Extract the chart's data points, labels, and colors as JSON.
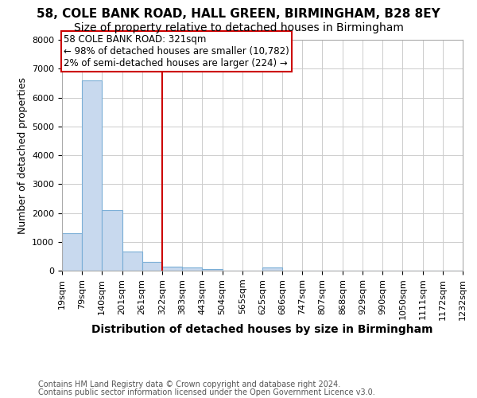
{
  "title1": "58, COLE BANK ROAD, HALL GREEN, BIRMINGHAM, B28 8EY",
  "title2": "Size of property relative to detached houses in Birmingham",
  "xlabel": "Distribution of detached houses by size in Birmingham",
  "ylabel": "Number of detached properties",
  "footnote1": "Contains HM Land Registry data © Crown copyright and database right 2024.",
  "footnote2": "Contains public sector information licensed under the Open Government Licence v3.0.",
  "annotation_line1": "58 COLE BANK ROAD: 321sqm",
  "annotation_line2": "← 98% of detached houses are smaller (10,782)",
  "annotation_line3": "2% of semi-detached houses are larger (224) →",
  "bin_edges": [
    19,
    79,
    140,
    201,
    261,
    322,
    383,
    443,
    504,
    565,
    625,
    686,
    747,
    807,
    868,
    929,
    990,
    1050,
    1111,
    1172,
    1232
  ],
  "bar_heights": [
    1300,
    6600,
    2100,
    650,
    300,
    150,
    100,
    60,
    0,
    0,
    100,
    0,
    0,
    0,
    0,
    0,
    0,
    0,
    0,
    0
  ],
  "bar_color": "#c8d9ee",
  "bar_edgecolor": "#7aaed6",
  "vline_x": 322,
  "vline_color": "#cc0000",
  "annotation_box_color": "#cc0000",
  "background_color": "#ffffff",
  "ylim": [
    0,
    8000
  ],
  "yticks": [
    0,
    1000,
    2000,
    3000,
    4000,
    5000,
    6000,
    7000,
    8000
  ],
  "tick_labels": [
    "19sqm",
    "79sqm",
    "140sqm",
    "201sqm",
    "261sqm",
    "322sqm",
    "383sqm",
    "443sqm",
    "504sqm",
    "565sqm",
    "625sqm",
    "686sqm",
    "747sqm",
    "807sqm",
    "868sqm",
    "929sqm",
    "990sqm",
    "1050sqm",
    "1111sqm",
    "1172sqm",
    "1232sqm"
  ],
  "title1_fontsize": 11,
  "title2_fontsize": 10,
  "xlabel_fontsize": 10,
  "ylabel_fontsize": 9,
  "footnote_fontsize": 7,
  "tick_fontsize": 8
}
